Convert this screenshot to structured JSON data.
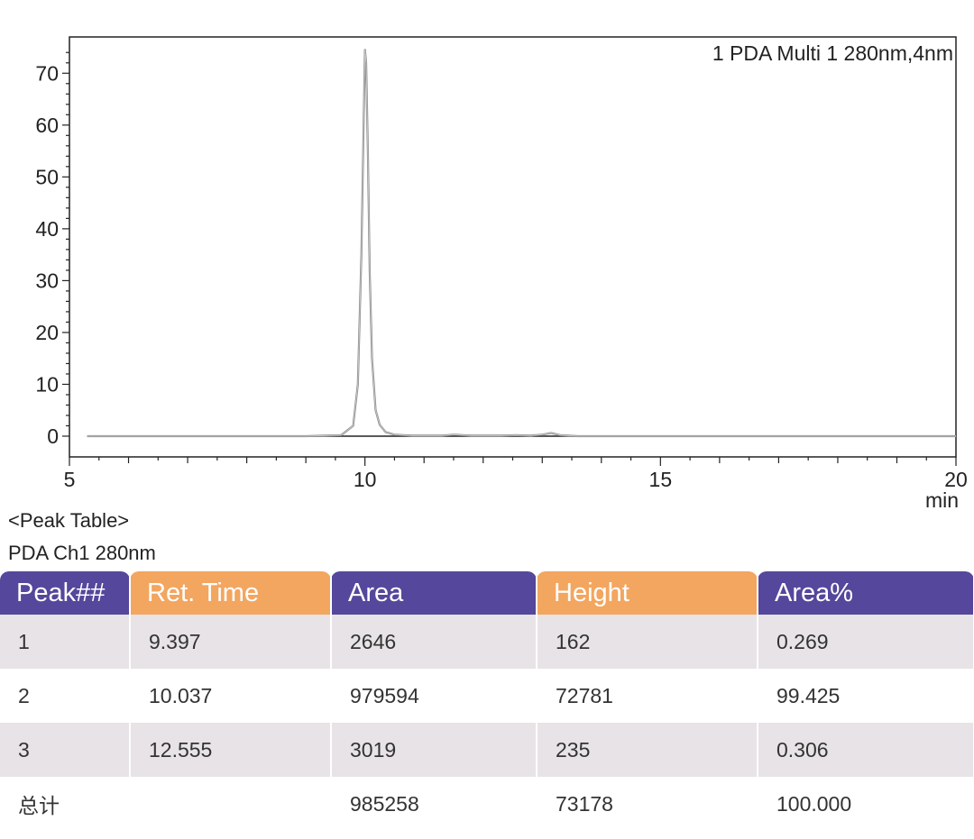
{
  "chart_data": {
    "type": "line",
    "annotation": "1 PDA Multi 1 280nm,4nm",
    "x_unit_label": "min",
    "xlim": [
      5,
      20
    ],
    "ylim": [
      -4,
      77
    ],
    "x_ticks": [
      5,
      10,
      15,
      20
    ],
    "y_ticks": [
      0,
      10,
      20,
      30,
      40,
      50,
      60,
      70
    ],
    "grid": false,
    "series": [
      {
        "x": [
          5.3,
          9.0,
          9.6,
          9.8,
          9.88,
          9.94,
          9.98,
          10.0,
          10.02,
          10.05,
          10.08,
          10.12,
          10.18,
          10.25,
          10.35,
          10.5,
          10.8,
          11.3,
          11.5,
          11.8,
          12.3,
          12.55,
          12.8,
          13.0,
          13.15,
          13.3,
          13.6,
          14.5,
          20.0
        ],
        "y": [
          0,
          0,
          0.2,
          2,
          10,
          35,
          62,
          74.5,
          72,
          55,
          32,
          15,
          5,
          2.2,
          0.8,
          0.3,
          0.1,
          0.1,
          0.3,
          0.1,
          0.1,
          0.2,
          0.1,
          0.3,
          0.6,
          0.2,
          0,
          0,
          0
        ]
      }
    ]
  },
  "captions": {
    "peak_table": "<Peak Table>",
    "channel": "PDA Ch1 280nm"
  },
  "table": {
    "headers": [
      "Peak##",
      "Ret. Time",
      "Area",
      "Height",
      "Area%"
    ],
    "rows": [
      [
        "1",
        "9.397",
        "2646",
        "162",
        "0.269"
      ],
      [
        "2",
        "10.037",
        "979594",
        "72781",
        "99.425"
      ],
      [
        "3",
        "12.555",
        "3019",
        "235",
        "0.306"
      ],
      [
        "总计",
        "",
        "985258",
        "73178",
        "100.000"
      ]
    ]
  },
  "colors": {
    "header_purple": "#55479b",
    "header_orange": "#f3a65f",
    "row_shade": "#e7e3e6",
    "trace": "#8a8a8a"
  }
}
